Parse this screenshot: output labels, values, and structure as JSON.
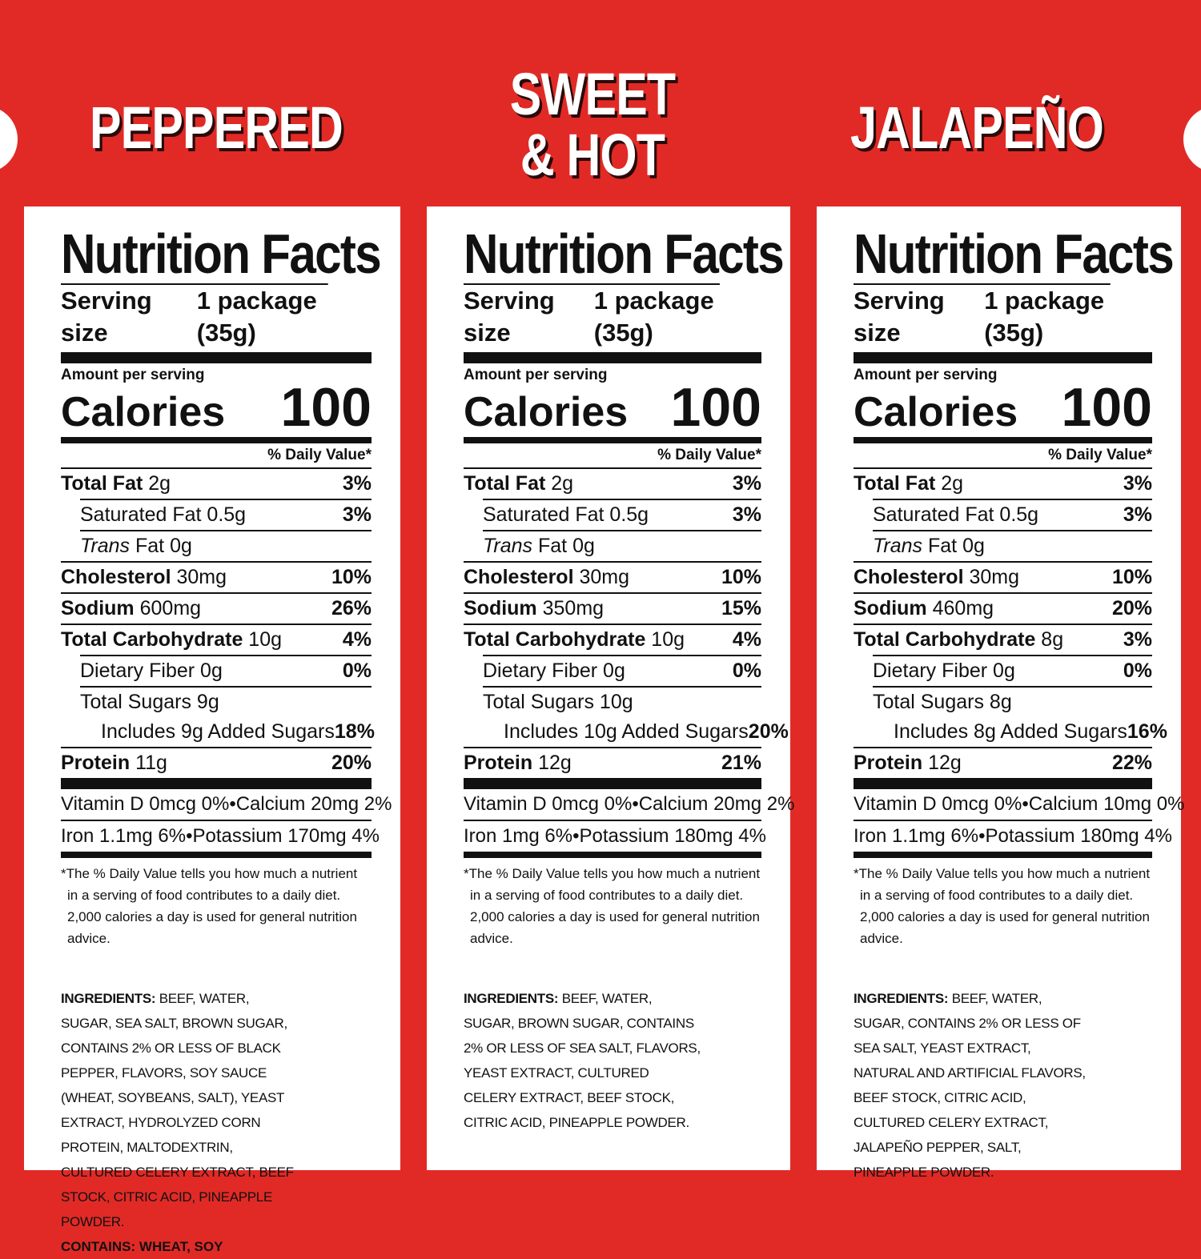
{
  "colors": {
    "background": "#e12a26",
    "panel": "#ffffff",
    "text": "#111111"
  },
  "products": [
    {
      "flavor": "PEPPERED",
      "title": "Nutrition Facts",
      "serving_label": "Serving size",
      "serving_value": "1 package (35g)",
      "amount_label": "Amount per serving",
      "calories_label": "Calories",
      "calories_value": "100",
      "dv_header": "% Daily Value*",
      "rows": [
        {
          "name": "Total Fat",
          "amt": " 2g",
          "pct": "3%"
        },
        {
          "name": "Saturated Fat 0.5g",
          "amt": "",
          "pct": "3%"
        },
        {
          "name": "Trans",
          "amt": " Fat 0g",
          "pct": ""
        },
        {
          "name": "Cholesterol",
          "amt": " 30mg",
          "pct": "10%"
        },
        {
          "name": "Sodium",
          "amt": " 600mg",
          "pct": "26%"
        },
        {
          "name": "Total Carbohydrate",
          "amt": " 10g",
          "pct": "4%"
        },
        {
          "name": "Dietary Fiber 0g",
          "amt": "",
          "pct": "0%"
        },
        {
          "name": "Total Sugars 9g",
          "amt": "",
          "pct": ""
        },
        {
          "name": "Includes 9g Added Sugars",
          "amt": "",
          "pct": "18%"
        },
        {
          "name": "Protein",
          "amt": " 11g",
          "pct": "20%"
        }
      ],
      "vitamins": [
        {
          "left": "Vitamin D 0mcg 0%",
          "sep": "•",
          "right": "Calcium 20mg 2%"
        },
        {
          "left": "Iron 1.1mg 6%",
          "sep": "•",
          "right": "Potassium 170mg 4%"
        }
      ],
      "footnote": "*The % Daily Value tells you how much a nutrient in a serving of food contributes to a daily diet. 2,000 calories a day is used for general nutrition advice.",
      "ingredients_label": "INGREDIENTS:",
      "ingredients": "BEEF, WATER, SUGAR, SEA SALT, BROWN SUGAR, CONTAINS 2% OR LESS OF BLACK PEPPER, FLAVORS, SOY SAUCE (WHEAT, SOYBEANS, SALT), YEAST EXTRACT, HYDROLYZED CORN PROTEIN, MALTODEXTRIN, CULTURED CELERY EXTRACT, BEEF STOCK, CITRIC ACID, PINEAPPLE POWDER.",
      "contains": "CONTAINS: WHEAT, SOY"
    },
    {
      "flavor": "SWEET\n& HOT",
      "title": "Nutrition Facts",
      "serving_label": "Serving size",
      "serving_value": "1 package (35g)",
      "amount_label": "Amount per serving",
      "calories_label": "Calories",
      "calories_value": "100",
      "dv_header": "% Daily Value*",
      "rows": [
        {
          "name": "Total Fat",
          "amt": " 2g",
          "pct": "3%"
        },
        {
          "name": "Saturated Fat 0.5g",
          "amt": "",
          "pct": "3%"
        },
        {
          "name": "Trans",
          "amt": " Fat 0g",
          "pct": ""
        },
        {
          "name": "Cholesterol",
          "amt": " 30mg",
          "pct": "10%"
        },
        {
          "name": "Sodium",
          "amt": " 350mg",
          "pct": "15%"
        },
        {
          "name": "Total Carbohydrate",
          "amt": " 10g",
          "pct": "4%"
        },
        {
          "name": "Dietary Fiber 0g",
          "amt": "",
          "pct": "0%"
        },
        {
          "name": "Total Sugars 10g",
          "amt": "",
          "pct": ""
        },
        {
          "name": "Includes 10g Added Sugars",
          "amt": "",
          "pct": "20%"
        },
        {
          "name": "Protein",
          "amt": " 12g",
          "pct": "21%"
        }
      ],
      "vitamins": [
        {
          "left": "Vitamin D 0mcg 0%",
          "sep": "•",
          "right": "Calcium 20mg 2%"
        },
        {
          "left": "Iron 1mg 6%",
          "sep": "•",
          "right": "Potassium 180mg 4%"
        }
      ],
      "footnote": "*The % Daily Value tells you how much a nutrient in a serving of food contributes to a daily diet. 2,000 calories a day is used for general nutrition advice.",
      "ingredients_label": "INGREDIENTS:",
      "ingredients": "BEEF, WATER, SUGAR, BROWN SUGAR, CONTAINS 2% OR LESS OF SEA SALT, FLAVORS, YEAST EXTRACT, CULTURED CELERY EXTRACT, BEEF STOCK, CITRIC ACID, PINEAPPLE POWDER.",
      "contains": ""
    },
    {
      "flavor": "JALAPEÑO",
      "title": "Nutrition Facts",
      "serving_label": "Serving size",
      "serving_value": "1 package (35g)",
      "amount_label": "Amount per serving",
      "calories_label": "Calories",
      "calories_value": "100",
      "dv_header": "% Daily Value*",
      "rows": [
        {
          "name": "Total Fat",
          "amt": " 2g",
          "pct": "3%"
        },
        {
          "name": "Saturated Fat 0.5g",
          "amt": "",
          "pct": "3%"
        },
        {
          "name": "Trans",
          "amt": " Fat 0g",
          "pct": ""
        },
        {
          "name": "Cholesterol",
          "amt": " 30mg",
          "pct": "10%"
        },
        {
          "name": "Sodium",
          "amt": " 460mg",
          "pct": "20%"
        },
        {
          "name": "Total Carbohydrate",
          "amt": " 8g",
          "pct": "3%"
        },
        {
          "name": "Dietary Fiber 0g",
          "amt": "",
          "pct": "0%"
        },
        {
          "name": "Total Sugars 8g",
          "amt": "",
          "pct": ""
        },
        {
          "name": "Includes 8g Added Sugars",
          "amt": "",
          "pct": "16%"
        },
        {
          "name": "Protein",
          "amt": " 12g",
          "pct": "22%"
        }
      ],
      "vitamins": [
        {
          "left": "Vitamin D 0mcg 0%",
          "sep": "•",
          "right": "Calcium 10mg 0%"
        },
        {
          "left": "Iron 1.1mg 6%",
          "sep": "•",
          "right": "Potassium 180mg 4%"
        }
      ],
      "footnote": "*The % Daily Value tells you how much a nutrient in a serving of food contributes to a daily diet. 2,000 calories a day is used for general nutrition advice.",
      "ingredients_label": "INGREDIENTS:",
      "ingredients": "BEEF, WATER, SUGAR, CONTAINS 2% OR LESS OF SEA SALT, YEAST EXTRACT, NATURAL AND ARTIFICIAL FLAVORS, BEEF STOCK, CITRIC ACID, CULTURED CELERY EXTRACT, JALAPEÑO PEPPER, SALT, PINEAPPLE POWDER.",
      "contains": ""
    }
  ]
}
